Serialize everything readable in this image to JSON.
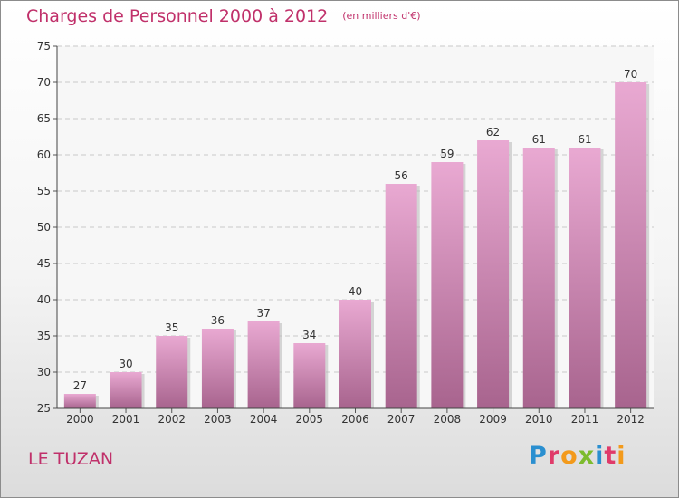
{
  "chart_data": {
    "type": "bar",
    "title": "Charges de Personnel 2000 à 2012",
    "subtitle": "(en milliers d'€)",
    "categories": [
      "2000",
      "2001",
      "2002",
      "2003",
      "2004",
      "2005",
      "2006",
      "2007",
      "2008",
      "2009",
      "2010",
      "2011",
      "2012"
    ],
    "values": [
      27,
      30,
      35,
      36,
      37,
      34,
      40,
      56,
      59,
      62,
      61,
      61,
      70
    ],
    "ylim": [
      25,
      75
    ],
    "yticks": [
      25,
      30,
      35,
      40,
      45,
      50,
      55,
      60,
      65,
      70,
      75
    ],
    "grid": true,
    "bar_color_top": "#e9a9d2",
    "bar_color_bottom": "#a8648e"
  },
  "footer": {
    "commune": "LE TUZAN",
    "logo_text": "Proxiti"
  },
  "colors": {
    "title": "#c0306a",
    "logo_letters": [
      "#2a8fd0",
      "#e03b6a",
      "#f39a1b",
      "#7dbb2e",
      "#2a8fd0",
      "#e03b6a",
      "#f39a1b"
    ]
  }
}
